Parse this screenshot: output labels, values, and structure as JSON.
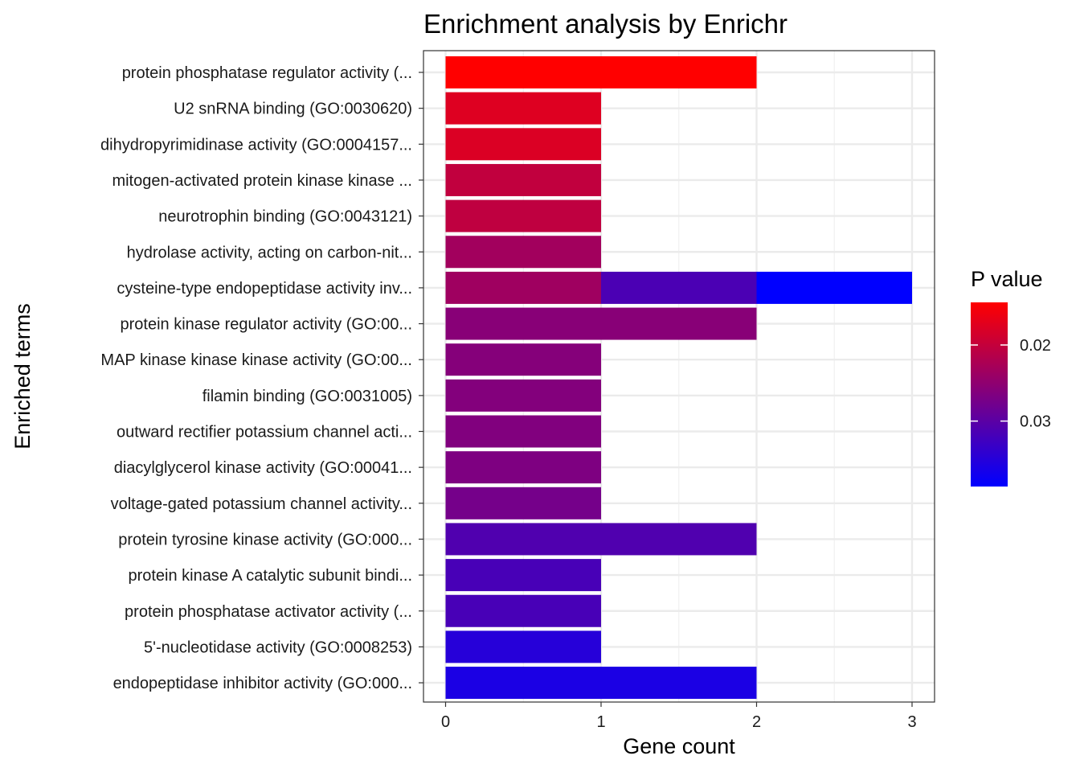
{
  "chart_data": {
    "type": "bar",
    "orientation": "horizontal",
    "stacked": true,
    "title": "Enrichment analysis by Enrichr",
    "xlabel": "Gene count",
    "ylabel": "Enriched terms",
    "xlim": [
      -0.15,
      3.15
    ],
    "x_ticks": [
      0,
      1,
      2,
      3
    ],
    "grid": true,
    "legend": {
      "title": "P value",
      "placement": "right",
      "ticks": [
        0.02,
        0.03
      ],
      "range": [
        0.0144,
        0.0386
      ],
      "low_color": "#FF0000",
      "high_color": "#0000FF"
    },
    "categories": [
      "protein phosphatase regulator activity (...",
      "U2 snRNA binding (GO:0030620)",
      "dihydropyrimidinase activity (GO:0004157...",
      "mitogen-activated protein kinase kinase ...",
      "neurotrophin binding (GO:0043121)",
      "hydrolase activity, acting on carbon-nit...",
      "cysteine-type endopeptidase activity inv...",
      "protein kinase regulator activity (GO:00...",
      "MAP kinase kinase kinase activity (GO:00...",
      "filamin binding (GO:0031005)",
      "outward rectifier potassium channel acti...",
      "diacylglycerol kinase activity (GO:00041...",
      "voltage-gated potassium channel activity...",
      "protein tyrosine kinase activity (GO:000...",
      "protein kinase A catalytic subunit bindi...",
      "protein phosphatase activator activity (...",
      "5'-nucleotidase activity (GO:0008253)",
      "endopeptidase inhibitor activity (GO:000..."
    ],
    "bars": [
      [
        {
          "value": 2,
          "pvalue": 0.0144
        }
      ],
      [
        {
          "value": 1,
          "pvalue": 0.0175
        }
      ],
      [
        {
          "value": 1,
          "pvalue": 0.0178
        }
      ],
      [
        {
          "value": 1,
          "pvalue": 0.0203
        }
      ],
      [
        {
          "value": 1,
          "pvalue": 0.0205
        }
      ],
      [
        {
          "value": 1,
          "pvalue": 0.0232
        }
      ],
      [
        {
          "value": 1,
          "pvalue": 0.0235
        },
        {
          "value": 1,
          "pvalue": 0.0315
        },
        {
          "value": 1,
          "pvalue": 0.0386
        }
      ],
      [
        {
          "value": 2,
          "pvalue": 0.0257
        }
      ],
      [
        {
          "value": 1,
          "pvalue": 0.026
        }
      ],
      [
        {
          "value": 1,
          "pvalue": 0.0262
        }
      ],
      [
        {
          "value": 1,
          "pvalue": 0.0264
        }
      ],
      [
        {
          "value": 1,
          "pvalue": 0.0266
        }
      ],
      [
        {
          "value": 1,
          "pvalue": 0.0275
        }
      ],
      [
        {
          "value": 2,
          "pvalue": 0.031
        }
      ],
      [
        {
          "value": 1,
          "pvalue": 0.0318
        }
      ],
      [
        {
          "value": 1,
          "pvalue": 0.0318
        }
      ],
      [
        {
          "value": 1,
          "pvalue": 0.035
        }
      ],
      [
        {
          "value": 2,
          "pvalue": 0.036
        }
      ]
    ]
  }
}
